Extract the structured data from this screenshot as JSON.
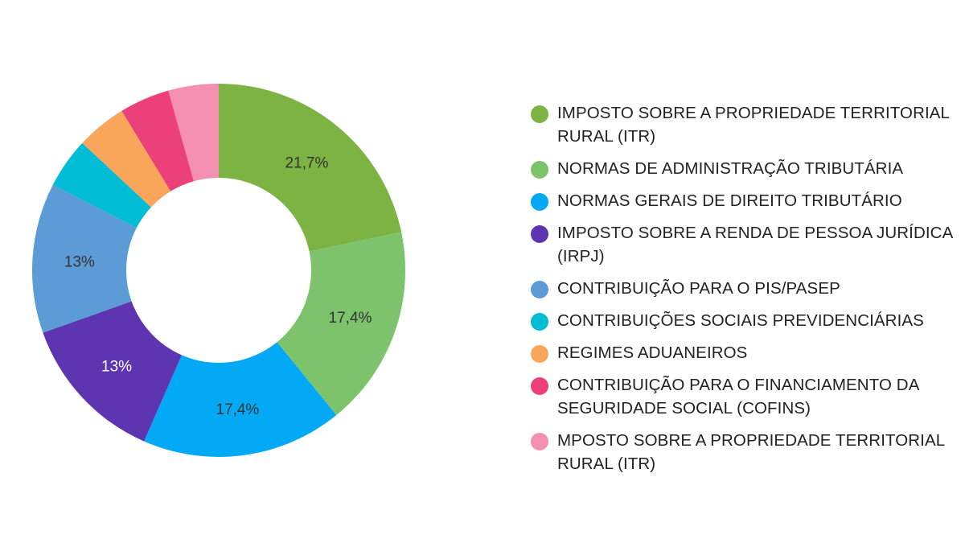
{
  "chart_data": {
    "type": "pie",
    "donut": true,
    "legend_position": "right",
    "slices": [
      {
        "label": "IMPOSTO SOBRE A PROPRIEDADE TERRITORIAL RURAL (ITR)",
        "value": 21.7,
        "value_label": "21,7%",
        "color": "#7cb342",
        "label_color": "#333333"
      },
      {
        "label": "NORMAS DE ADMINISTRAÇÃO TRIBUTÁRIA",
        "value": 17.4,
        "value_label": "17,4%",
        "color": "#7dc36c",
        "label_color": "#333333"
      },
      {
        "label": "NORMAS GERAIS DE DIREITO TRIBUTÁRIO",
        "value": 17.4,
        "value_label": "17,4%",
        "color": "#03a9f4",
        "label_color": "#333333"
      },
      {
        "label": "IMPOSTO SOBRE A RENDA DE PESSOA JURÍDICA (IRPJ)",
        "value": 13.0,
        "value_label": "13%",
        "color": "#5e35b1",
        "label_color": "#ffffff"
      },
      {
        "label": "CONTRIBUIÇÃO PARA O PIS/PASEP",
        "value": 13.0,
        "value_label": "13%",
        "color": "#5c9bd5",
        "label_color": "#333333"
      },
      {
        "label": "CONTRIBUIÇÕES SOCIAIS PREVIDENCIÁRIAS",
        "value": 4.35,
        "value_label": "",
        "color": "#00bcd4",
        "label_color": "#333333"
      },
      {
        "label": "REGIMES ADUANEIROS",
        "value": 4.35,
        "value_label": "",
        "color": "#f9a65a",
        "label_color": "#333333"
      },
      {
        "label": "CONTRIBUIÇÃO PARA O FINANCIAMENTO DA SEGURIDADE SOCIAL (COFINS)",
        "value": 4.35,
        "value_label": "",
        "color": "#ec407a",
        "label_color": "#333333"
      },
      {
        "label": "MPOSTO SOBRE A PROPRIEDADE TERRITORIAL RURAL (ITR)",
        "value": 4.35,
        "value_label": "",
        "color": "#f48fb1",
        "label_color": "#333333"
      }
    ]
  }
}
